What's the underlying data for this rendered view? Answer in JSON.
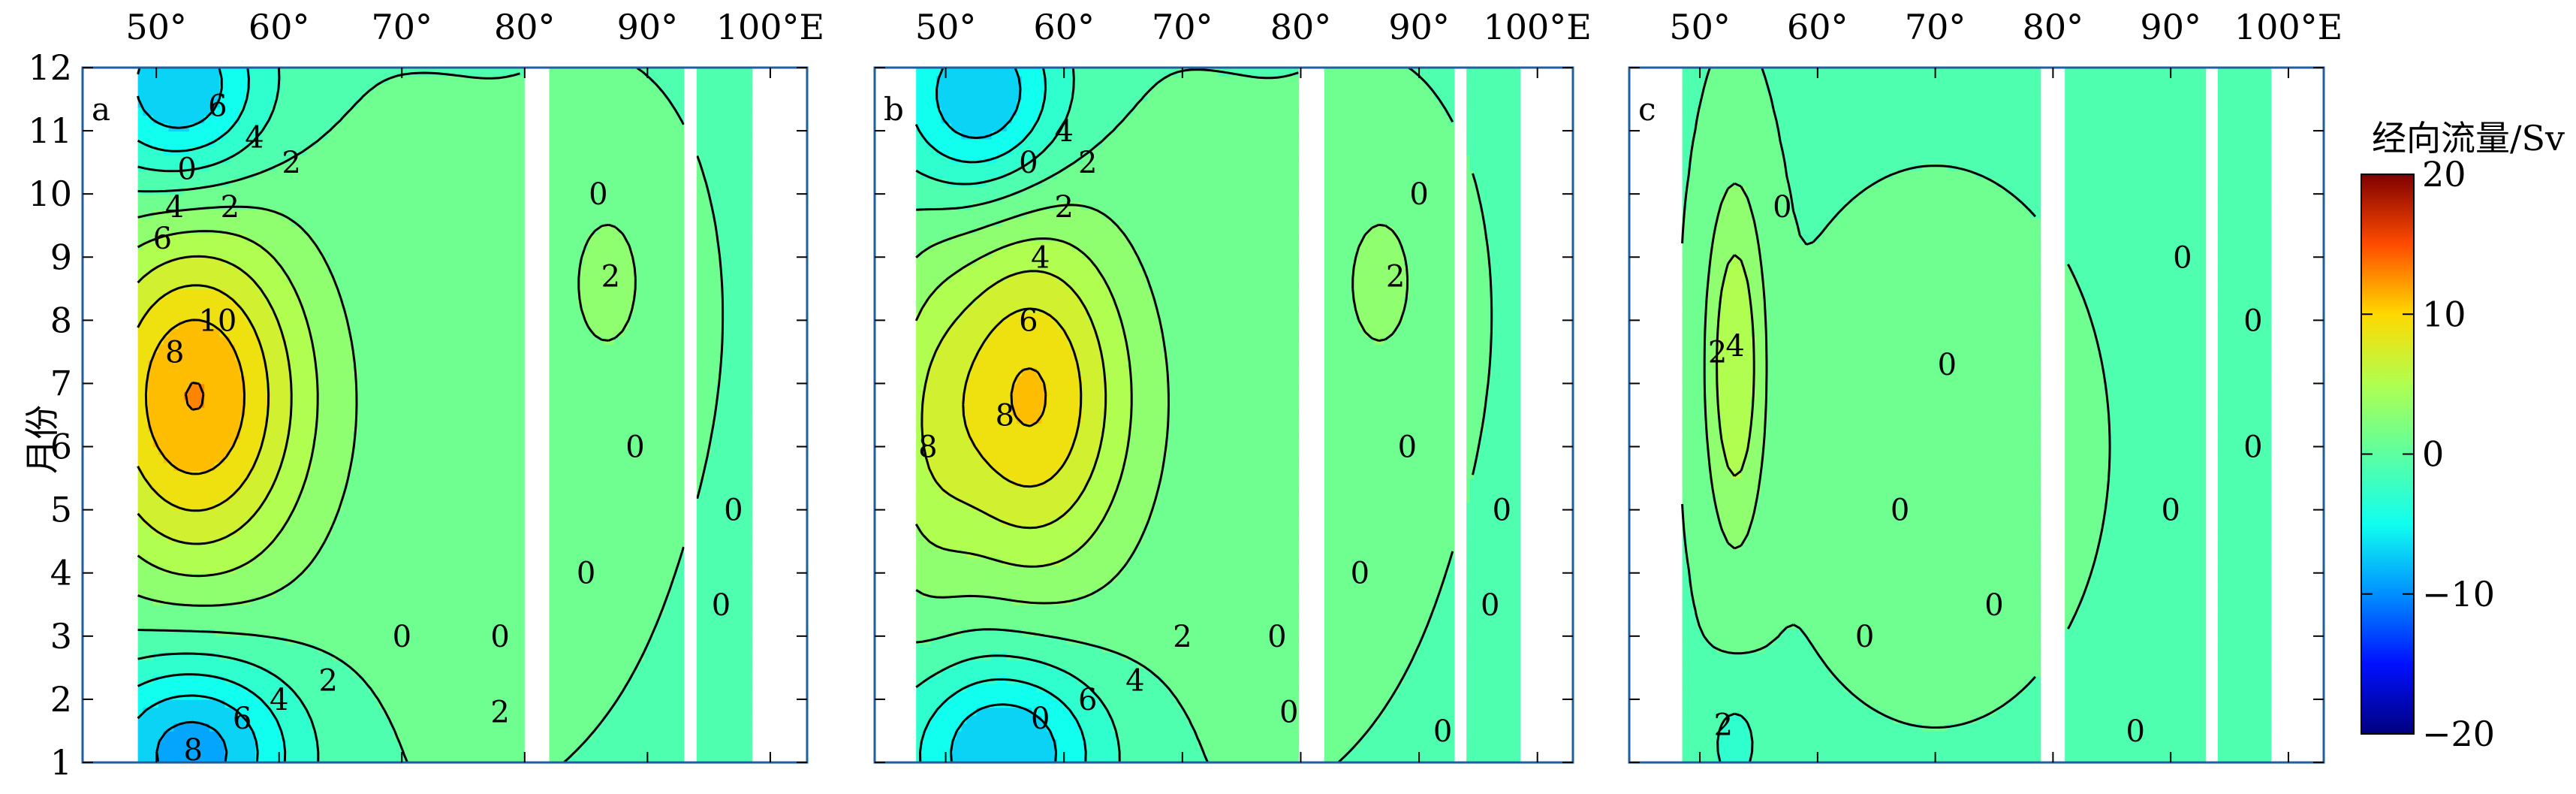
{
  "chart_data": {
    "type": "contour",
    "xlabel": "",
    "ylabel": "月份",
    "x_ticks": [
      "50°",
      "60°",
      "70°",
      "80°",
      "90°",
      "100°E"
    ],
    "y_ticks": [
      "1",
      "2",
      "3",
      "4",
      "5",
      "6",
      "7",
      "8",
      "9",
      "10",
      "11",
      "12"
    ],
    "xlim": [
      44,
      103
    ],
    "ylim": [
      1,
      12
    ],
    "colorbar": {
      "title": "经向流量/Sv",
      "ticks": [
        "20",
        "10",
        "0",
        "−10",
        "−20"
      ],
      "range": [
        -20,
        20
      ]
    },
    "panels": [
      {
        "label": "a",
        "gaps": [
          [
            80,
            82
          ],
          [
            93,
            94
          ]
        ],
        "data_start": 48.5,
        "data_end": 98.5,
        "contour_labels": [
          "6",
          "4",
          "2",
          "0",
          "4",
          "2",
          "6",
          "10",
          "8",
          "0",
          "2",
          "0",
          "0",
          "0",
          "2",
          "8",
          "6",
          "4",
          "2",
          "0",
          "0",
          "0"
        ],
        "peak": {
          "lon": 53,
          "month": 6.7,
          "value": 12
        }
      },
      {
        "label": "b",
        "gaps": [
          [
            80,
            82
          ],
          [
            93,
            94
          ]
        ],
        "data_start": 47.5,
        "data_end": 98.5,
        "contour_labels": [
          "4",
          "0",
          "2",
          "2",
          "4",
          "6",
          "8",
          "8",
          "0",
          "2",
          "0",
          "0",
          "0",
          "0",
          "0",
          "6",
          "4",
          "2",
          "0",
          "0",
          "0"
        ],
        "peak": {
          "lon": 57,
          "month": 6.8,
          "value": 10
        }
      },
      {
        "label": "c",
        "gaps": [
          [
            79,
            81
          ],
          [
            93,
            94
          ]
        ],
        "data_start": 48.5,
        "data_end": 98.5,
        "contour_labels": [
          "0",
          "0",
          "4",
          "2",
          "0",
          "0",
          "0",
          "0",
          "0",
          "0",
          "2",
          "0",
          "0"
        ],
        "peak": {
          "lon": 53,
          "month": 7.3,
          "value": 6
        }
      }
    ]
  }
}
